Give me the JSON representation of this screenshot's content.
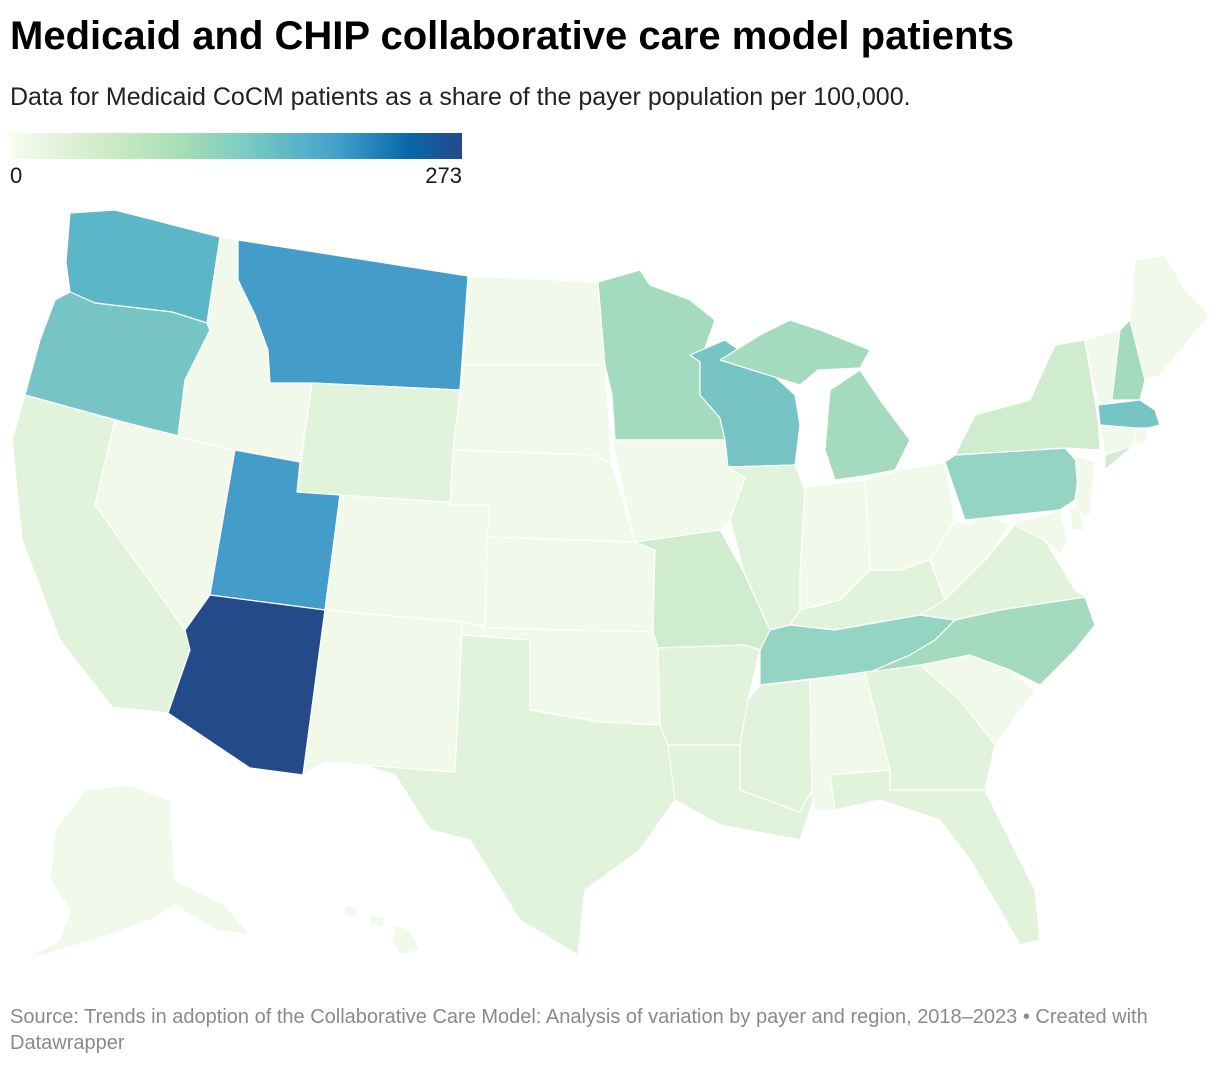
{
  "title": "Medicaid and CHIP collaborative care model patients",
  "subtitle": "Data for Medicaid CoCM patients as a share of the payer population per 100,000.",
  "legend": {
    "min": "0",
    "max": "273"
  },
  "colors": {
    "l0": "#f1f9ea",
    "l1": "#e2f3dc",
    "l2": "#cfecce",
    "l3": "#a4dbbe",
    "l4": "#93d4c2",
    "l5": "#76c5c4",
    "l6": "#5bb6c8",
    "l7": "#439dc8",
    "l8": "#244a8a"
  },
  "states": [
    {
      "code": "WA",
      "level": "l6"
    },
    {
      "code": "OR",
      "level": "l5"
    },
    {
      "code": "CA",
      "level": "l1"
    },
    {
      "code": "NV",
      "level": "l0"
    },
    {
      "code": "ID",
      "level": "l0"
    },
    {
      "code": "MT",
      "level": "l7"
    },
    {
      "code": "WY",
      "level": "l1"
    },
    {
      "code": "UT",
      "level": "l7"
    },
    {
      "code": "AZ",
      "level": "l8"
    },
    {
      "code": "NM",
      "level": "l0"
    },
    {
      "code": "CO",
      "level": "l0"
    },
    {
      "code": "ND",
      "level": "l0"
    },
    {
      "code": "SD",
      "level": "l0"
    },
    {
      "code": "NE",
      "level": "l0"
    },
    {
      "code": "KS",
      "level": "l0"
    },
    {
      "code": "OK",
      "level": "l0"
    },
    {
      "code": "TX",
      "level": "l1"
    },
    {
      "code": "MN",
      "level": "l3"
    },
    {
      "code": "IA",
      "level": "l0"
    },
    {
      "code": "MO",
      "level": "l2"
    },
    {
      "code": "AR",
      "level": "l1"
    },
    {
      "code": "LA",
      "level": "l1"
    },
    {
      "code": "WI",
      "level": "l5"
    },
    {
      "code": "IL",
      "level": "l1"
    },
    {
      "code": "MI",
      "level": "l3"
    },
    {
      "code": "IN",
      "level": "l0"
    },
    {
      "code": "OH",
      "level": "l0"
    },
    {
      "code": "KY",
      "level": "l1"
    },
    {
      "code": "TN",
      "level": "l4"
    },
    {
      "code": "MS",
      "level": "l1"
    },
    {
      "code": "AL",
      "level": "l0"
    },
    {
      "code": "GA",
      "level": "l1"
    },
    {
      "code": "FL",
      "level": "l1"
    },
    {
      "code": "SC",
      "level": "l0"
    },
    {
      "code": "NC",
      "level": "l3"
    },
    {
      "code": "VA",
      "level": "l1"
    },
    {
      "code": "WV",
      "level": "l0"
    },
    {
      "code": "PA",
      "level": "l4"
    },
    {
      "code": "NY",
      "level": "l2"
    },
    {
      "code": "VT",
      "level": "l0"
    },
    {
      "code": "NH",
      "level": "l3"
    },
    {
      "code": "ME",
      "level": "l0"
    },
    {
      "code": "MA",
      "level": "l5"
    },
    {
      "code": "CT",
      "level": "l0"
    },
    {
      "code": "RI",
      "level": "l0"
    },
    {
      "code": "NJ",
      "level": "l0"
    },
    {
      "code": "DE",
      "level": "l0"
    },
    {
      "code": "MD",
      "level": "l0"
    },
    {
      "code": "AK",
      "level": "l0"
    },
    {
      "code": "HI",
      "level": "l0"
    }
  ],
  "source": "Source: Trends in adoption of the Collaborative Care Model: Analysis of variation by payer and region, 2018–2023 • Created with Datawrapper"
}
